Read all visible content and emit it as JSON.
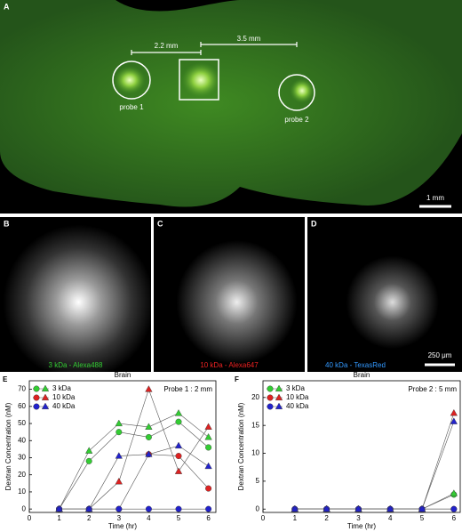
{
  "figure": {
    "panel_a": "A",
    "dist_1": "2.2 mm",
    "dist_2": "3.5 mm",
    "probe_1": "probe 1",
    "probe_2": "probe 2",
    "scale_a": "1 mm",
    "panel_b": "B",
    "panel_c": "C",
    "panel_d": "D",
    "label_b": "3 kDa - Alexa488",
    "label_c": "10 kDa - Alexa647",
    "label_d": "40 kDa - TexasRed",
    "scale_bcd": "250 μm"
  },
  "chart_data": [
    {
      "type": "line",
      "panel": "E",
      "title": "Brain",
      "annotation": "Probe 1 : 2 mm",
      "xlabel": "Time (hr)",
      "ylabel": "Dextran Concentration (nM)",
      "x": [
        1,
        2,
        3,
        4,
        5,
        6
      ],
      "xlim": [
        0,
        6.25
      ],
      "xticks": [
        0,
        1,
        2,
        3,
        4,
        5,
        6
      ],
      "ylim": [
        -2,
        75
      ],
      "yticks": [
        0,
        10,
        20,
        30,
        40,
        50,
        60,
        70
      ],
      "series": [
        {
          "name": "3 kDa",
          "color": "#33cc33",
          "circles": [
            0,
            28,
            45,
            42,
            51,
            36
          ],
          "triangles": [
            0,
            34,
            50,
            48,
            56,
            42
          ]
        },
        {
          "name": "10 kDa",
          "color": "#dd2222",
          "circles": [
            0,
            0,
            0,
            32,
            31,
            12
          ],
          "triangles": [
            0,
            0,
            16,
            70,
            22,
            48
          ]
        },
        {
          "name": "40 kDa",
          "color": "#2222cc",
          "circles": [
            0,
            0,
            0,
            0,
            0,
            0
          ],
          "triangles": [
            0,
            0,
            31,
            32,
            37,
            25
          ]
        }
      ]
    },
    {
      "type": "line",
      "panel": "F",
      "title": "Brain",
      "annotation": "Probe 2 : 5 mm",
      "xlabel": "Time (hr)",
      "ylabel": "Dextran Concentration (nM)",
      "x": [
        1,
        2,
        3,
        4,
        5,
        6
      ],
      "xlim": [
        0,
        6.2
      ],
      "xticks": [
        0,
        1,
        2,
        3,
        4,
        5,
        6
      ],
      "ylim": [
        -0.6,
        23
      ],
      "yticks": [
        0,
        5,
        10,
        15,
        20
      ],
      "series": [
        {
          "name": "3 kDa",
          "color": "#33cc33",
          "circles": [
            0,
            0,
            0,
            0,
            0,
            2.6
          ],
          "triangles": [
            0,
            0,
            0,
            0,
            0,
            2.8
          ]
        },
        {
          "name": "10 kDa",
          "color": "#dd2222",
          "circles": [
            0,
            0,
            0,
            0,
            0,
            0
          ],
          "triangles": [
            0,
            0,
            0,
            0,
            0,
            17.2
          ]
        },
        {
          "name": "40 kDa",
          "color": "#2222cc",
          "circles": [
            0,
            0,
            0,
            0,
            0,
            0
          ],
          "triangles": [
            0,
            0,
            0,
            0,
            0,
            15.7
          ]
        }
      ]
    }
  ]
}
